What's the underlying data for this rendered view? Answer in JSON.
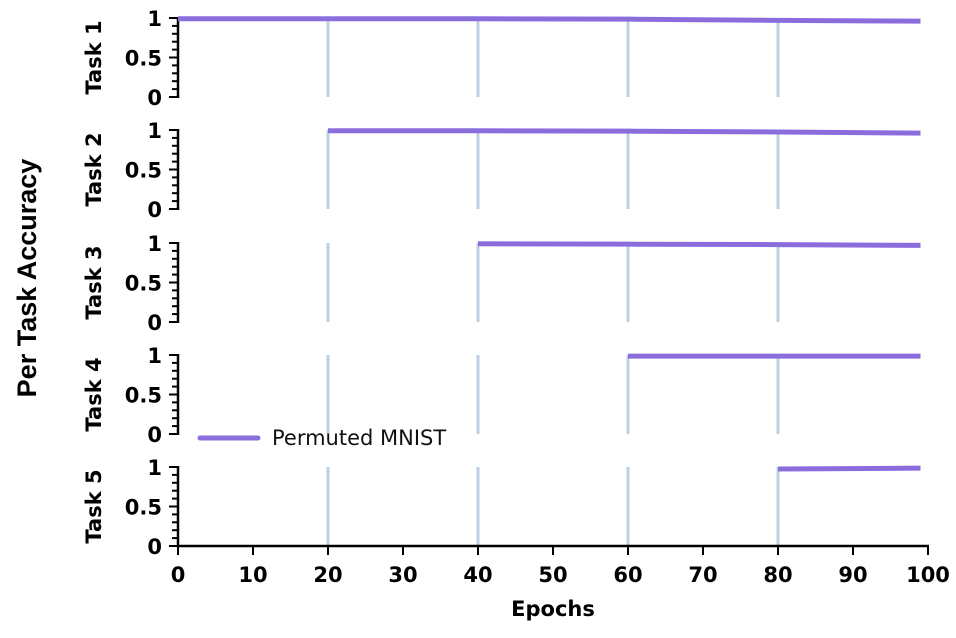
{
  "chart_data": {
    "type": "line",
    "ylabel": "Per Task Accuracy",
    "xlabel": "Epochs",
    "xlim": [
      0,
      100
    ],
    "x_ticks": [
      "0",
      "10",
      "20",
      "30",
      "40",
      "50",
      "60",
      "70",
      "80",
      "90",
      "100"
    ],
    "y_ticks": [
      "0",
      "0.5",
      "1"
    ],
    "ylim": [
      0,
      1
    ],
    "task_boundaries": [
      20,
      40,
      60,
      80
    ],
    "legend": {
      "label": "Permuted MNIST",
      "placement": "lower-left"
    },
    "colors": {
      "line": "#8a6fdc",
      "boundary": "#bcd0e4"
    },
    "panels": [
      {
        "name": "Task 1",
        "x": [
          0,
          20,
          40,
          60,
          80,
          99
        ],
        "values": [
          0.99,
          0.99,
          0.99,
          0.985,
          0.97,
          0.96
        ]
      },
      {
        "name": "Task 2",
        "x": [
          20,
          40,
          60,
          80,
          99
        ],
        "values": [
          0.99,
          0.99,
          0.985,
          0.975,
          0.96
        ]
      },
      {
        "name": "Task 3",
        "x": [
          40,
          60,
          80,
          99
        ],
        "values": [
          0.99,
          0.985,
          0.98,
          0.97
        ]
      },
      {
        "name": "Task 4",
        "x": [
          60,
          80,
          99
        ],
        "values": [
          0.985,
          0.985,
          0.985
        ]
      },
      {
        "name": "Task 5",
        "x": [
          80,
          99
        ],
        "values": [
          0.975,
          0.985
        ]
      }
    ]
  }
}
